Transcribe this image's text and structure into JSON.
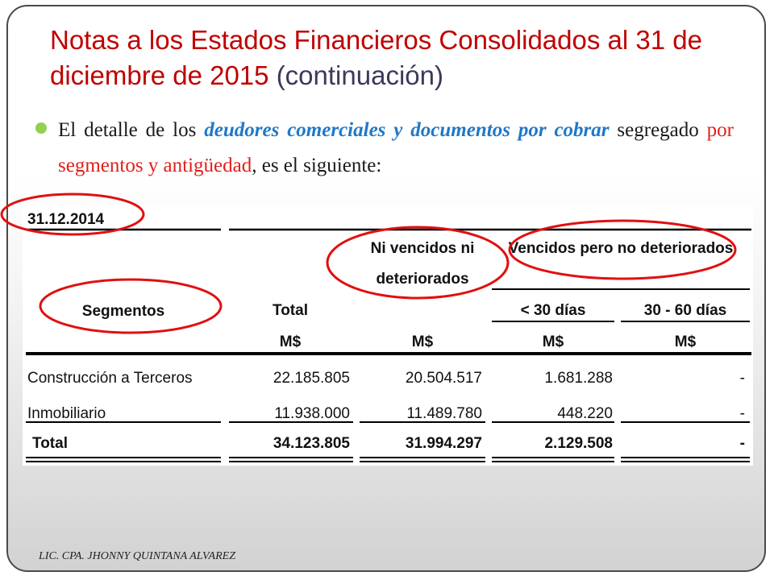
{
  "slide": {
    "title": "Notas a los Estados Financieros Consolidados al 31 de diciembre de 2015",
    "title_suffix": "(continuación)",
    "bullet": {
      "part1": "El detalle de los ",
      "part2_highlight": "deudores comerciales y documentos por cobrar",
      "part3": " segregado ",
      "part4_highlight": "por segmentos y antigüedad",
      "part5": ", es el siguiente:"
    },
    "footer": "LIC. CPA. JHONNY QUINTANA ALVAREZ"
  },
  "table": {
    "date": "31.12.2014",
    "header_ni_vencidos_line1": "Ni vencidos ni",
    "header_ni_vencidos_line2": "deteriorados",
    "header_vencidos": "Vencidos pero no deteriorados",
    "header_segmentos": "Segmentos",
    "header_total": "Total",
    "header_lt30": "< 30 días",
    "header_30_60": "30 - 60 días",
    "units": [
      "M$",
      "M$",
      "M$",
      "M$"
    ],
    "rows": [
      {
        "segment": "Construcción a Terceros",
        "total": "22.185.805",
        "ni_vencidos": "20.504.517",
        "lt30": "1.681.288",
        "d30_60": "-"
      },
      {
        "segment": "Inmobiliario",
        "total": "11.938.000",
        "ni_vencidos": "11.489.780",
        "lt30": "448.220",
        "d30_60": "-"
      }
    ],
    "total_row": {
      "segment": "Total",
      "total": "34.123.805",
      "ni_vencidos": "31.994.297",
      "lt30": "2.129.508",
      "d30_60": "-"
    }
  },
  "colors": {
    "title": "#c00000",
    "highlight_blue": "#1f78c8",
    "highlight_red": "#e0201c",
    "annotation_circle": "#e01010",
    "bullet": "#92d050"
  }
}
